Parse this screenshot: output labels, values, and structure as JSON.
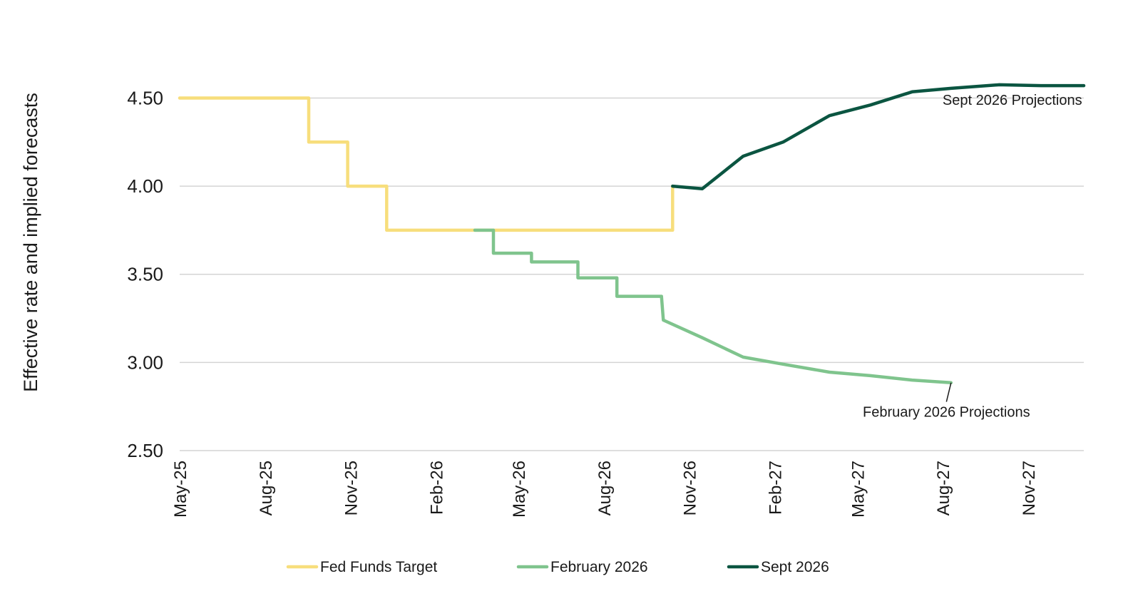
{
  "chart_data": {
    "type": "line",
    "ylabel": "Effective rate and implied forecasts",
    "xlabel": "",
    "ylim": [
      2.5,
      4.7
    ],
    "yticks": [
      2.5,
      3.0,
      3.5,
      4.0,
      4.5
    ],
    "ytick_labels": [
      "2.50",
      "3.00",
      "3.50",
      "4.00",
      "4.50"
    ],
    "x_range": [
      "2025-05-01",
      "2027-12-31"
    ],
    "x_ticks": [
      "2025-05-01",
      "2025-08-01",
      "2025-11-01",
      "2026-02-01",
      "2026-05-01",
      "2026-08-01",
      "2026-11-01",
      "2027-02-01",
      "2027-05-01",
      "2027-08-01",
      "2027-11-01"
    ],
    "x_tick_labels": [
      "May-25",
      "Aug-25",
      "Nov-25",
      "Feb-26",
      "May-26",
      "Aug-26",
      "Nov-26",
      "Feb-27",
      "May-27",
      "Aug-27",
      "Nov-27"
    ],
    "grid": true,
    "legend_position": "bottom",
    "series": [
      {
        "name": "Fed Funds Target",
        "color": "#f7de7c",
        "step": true,
        "points": [
          [
            "2025-05-01",
            4.5
          ],
          [
            "2025-09-17",
            4.5
          ],
          [
            "2025-09-17",
            4.25
          ],
          [
            "2025-10-29",
            4.25
          ],
          [
            "2025-10-29",
            4.0
          ],
          [
            "2025-12-10",
            4.0
          ],
          [
            "2025-12-10",
            3.75
          ],
          [
            "2026-10-14",
            3.75
          ],
          [
            "2026-10-14",
            4.0
          ]
        ]
      },
      {
        "name": "February 2026",
        "color": "#7fc48d",
        "step": true,
        "points": [
          [
            "2026-03-15",
            3.75
          ],
          [
            "2026-04-04",
            3.75
          ],
          [
            "2026-04-04",
            3.62
          ],
          [
            "2026-05-15",
            3.62
          ],
          [
            "2026-05-15",
            3.57
          ],
          [
            "2026-07-04",
            3.57
          ],
          [
            "2026-07-04",
            3.48
          ],
          [
            "2026-08-15",
            3.48
          ],
          [
            "2026-08-15",
            3.375
          ],
          [
            "2026-10-02",
            3.375
          ],
          [
            "2026-10-04",
            3.24
          ],
          [
            "2026-11-15",
            3.14
          ],
          [
            "2026-12-29",
            3.03
          ],
          [
            "2027-02-10",
            2.99
          ],
          [
            "2027-04-01",
            2.945
          ],
          [
            "2027-05-15",
            2.925
          ],
          [
            "2027-06-29",
            2.9
          ],
          [
            "2027-08-10",
            2.885
          ]
        ]
      },
      {
        "name": "Sept 2026",
        "color": "#0b5541",
        "step": false,
        "points": [
          [
            "2026-10-14",
            4.0
          ],
          [
            "2026-11-15",
            3.985
          ],
          [
            "2026-12-29",
            4.17
          ],
          [
            "2027-02-10",
            4.25
          ],
          [
            "2027-04-01",
            4.4
          ],
          [
            "2027-05-15",
            4.46
          ],
          [
            "2027-06-29",
            4.535
          ],
          [
            "2027-08-10",
            4.555
          ],
          [
            "2027-10-01",
            4.575
          ],
          [
            "2027-11-15",
            4.57
          ],
          [
            "2027-12-31",
            4.57
          ]
        ]
      }
    ],
    "annotations": [
      {
        "text": "Sept 2026 Projections",
        "anchor_x": "2027-10-15",
        "anchor_y": 4.49
      },
      {
        "text": "February 2026 Projections",
        "anchor_x": "2027-08-05",
        "anchor_y": 2.72,
        "pointer_to": [
          "2027-08-10",
          2.885
        ]
      }
    ]
  }
}
